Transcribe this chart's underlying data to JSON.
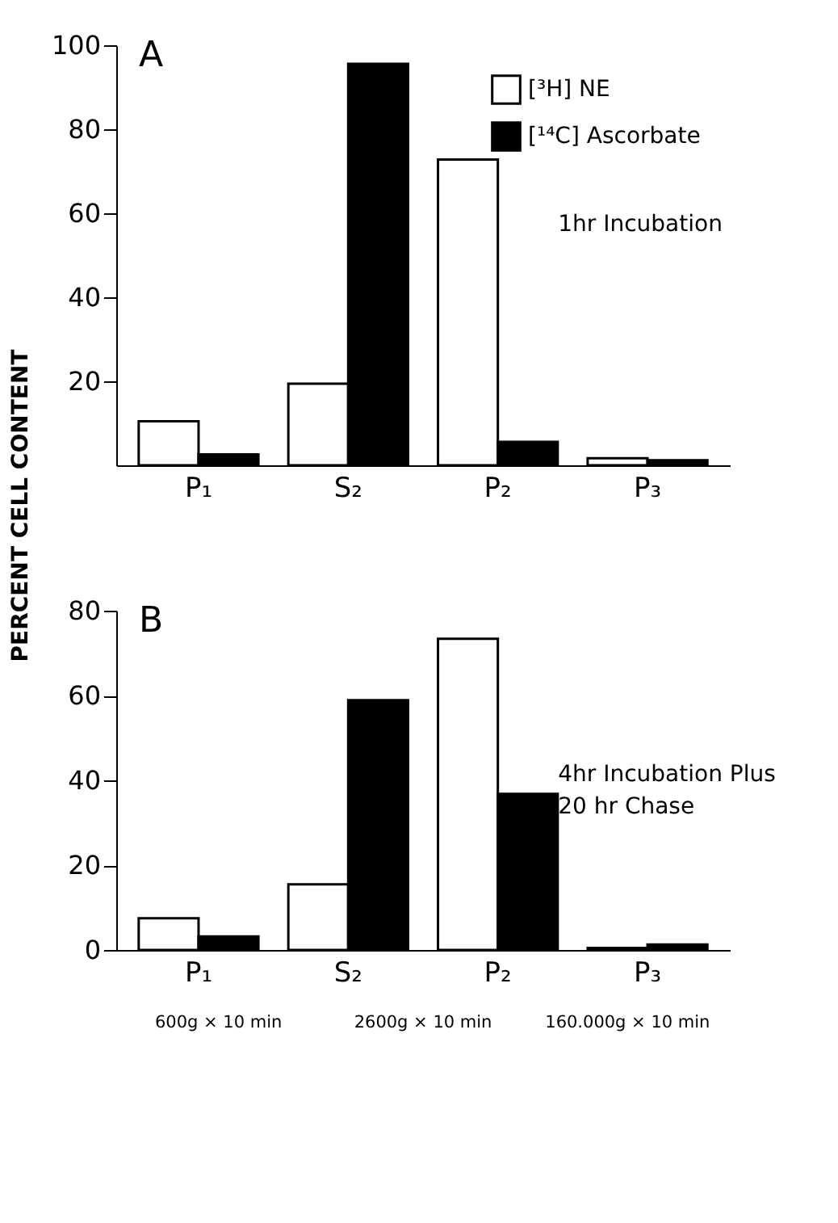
{
  "chart_data": [
    {
      "type": "bar",
      "title": "A",
      "ylabel": "PERCENT CELL CONTENT",
      "categories": [
        "P₁",
        "S₂",
        "P₂",
        "P₃"
      ],
      "series": [
        {
          "name": "[³H] NE",
          "color": "#ffffff",
          "values": [
            10.5,
            19.4,
            72.8,
            1.7
          ]
        },
        {
          "name": "[¹⁴C] Ascorbate",
          "color": "#000000",
          "values": [
            2.6,
            95.6,
            5.6,
            1.2
          ]
        }
      ],
      "ylim": [
        0,
        100
      ],
      "yticks": [
        20,
        40,
        60,
        80,
        100
      ],
      "grid": false,
      "legend": "top right",
      "annotations": [
        "1hr Incubation"
      ]
    },
    {
      "type": "bar",
      "title": "B",
      "categories": [
        "P₁",
        "S₂",
        "P₂",
        "P₃"
      ],
      "series": [
        {
          "color": "#ffffff",
          "values": [
            7.5,
            15.5,
            73.4,
            0.5
          ]
        },
        {
          "color": "#000000",
          "values": [
            3.2,
            58.9,
            36.8,
            1.3
          ]
        }
      ],
      "ylim": [
        0,
        80
      ],
      "yticks": [
        0,
        20,
        40,
        60,
        80
      ],
      "grid": false,
      "legend": false,
      "annotations": [
        "4hr Incubation Plus\n20 hr Chase",
        "600g × 10 min",
        "2600g × 10 min",
        "160.000g × 10 min"
      ]
    }
  ]
}
